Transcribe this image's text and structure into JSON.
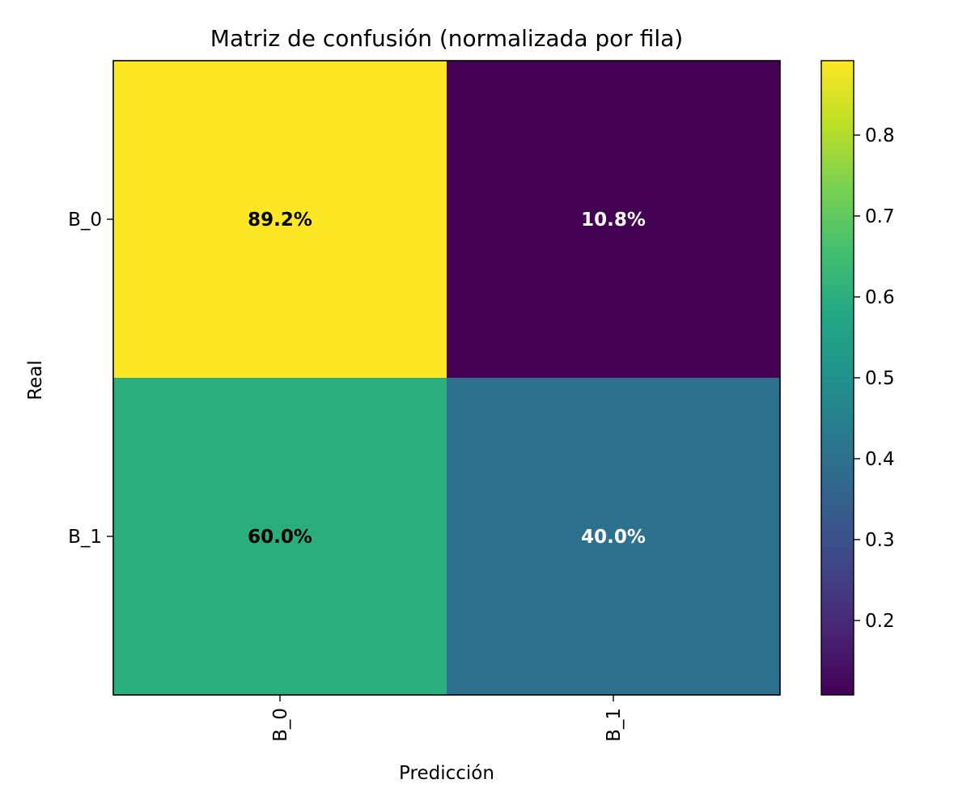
{
  "chart_data": {
    "type": "heatmap",
    "title": "Matriz de confusión (normalizada por fila)",
    "xlabel": "Predicción",
    "ylabel": "Real",
    "x_categories": [
      "B_0",
      "B_1"
    ],
    "y_categories": [
      "B_0",
      "B_1"
    ],
    "values": [
      [
        0.892,
        0.108
      ],
      [
        0.6,
        0.4
      ]
    ],
    "cell_labels": [
      [
        "89.2%",
        "10.8%"
      ],
      [
        "60.0%",
        "40.0%"
      ]
    ],
    "colormap": "viridis",
    "colorbar": {
      "range": [
        0.108,
        0.892
      ],
      "ticks": [
        0.2,
        0.3,
        0.4,
        0.5,
        0.6,
        0.7,
        0.8
      ],
      "tick_labels": [
        "0.2",
        "0.3",
        "0.4",
        "0.5",
        "0.6",
        "0.7",
        "0.8"
      ]
    },
    "grid": false,
    "legend": "colorbar-right"
  }
}
